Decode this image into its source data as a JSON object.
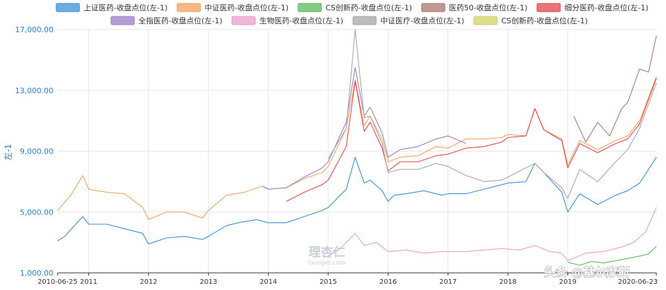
{
  "chart_data": {
    "type": "line",
    "ylabel": "左-1",
    "ylim": [
      1000,
      17000
    ],
    "y_ticks": [
      "1,000.00",
      "5,000.00",
      "9,000.00",
      "13,000.00",
      "17,000.00"
    ],
    "y_tick_values": [
      1000,
      5000,
      9000,
      13000,
      17000
    ],
    "x_ticks": [
      "2010-06-25",
      "2011",
      "2012",
      "2013",
      "2014",
      "2015",
      "2016",
      "2017",
      "2018",
      "2019",
      "2020-06-23"
    ],
    "x_tick_values": [
      2010.48,
      2011.0,
      2012.0,
      2013.0,
      2014.0,
      2015.0,
      2016.0,
      2017.0,
      2018.0,
      2019.0,
      2020.48
    ],
    "xlim": [
      2010.48,
      2020.48
    ],
    "grid": true,
    "legend_position": "top",
    "series": [
      {
        "name": "上证医药-收盘点位(左-1)",
        "color": "#3a8fd6",
        "x": [
          2010.48,
          2010.6,
          2010.9,
          2011.0,
          2011.3,
          2011.6,
          2011.9,
          2012.0,
          2012.3,
          2012.6,
          2012.9,
          2013.0,
          2013.3,
          2013.5,
          2013.8,
          2014.0,
          2014.3,
          2014.6,
          2014.9,
          2015.0,
          2015.3,
          2015.45,
          2015.6,
          2015.7,
          2015.9,
          2016.0,
          2016.1,
          2016.3,
          2016.6,
          2016.9,
          2017.0,
          2017.3,
          2017.6,
          2017.9,
          2018.0,
          2018.3,
          2018.45,
          2018.6,
          2018.9,
          2019.0,
          2019.2,
          2019.5,
          2019.8,
          2020.0,
          2020.2,
          2020.48
        ],
        "y": [
          3100,
          3400,
          4700,
          4200,
          4200,
          3900,
          3600,
          2900,
          3300,
          3400,
          3200,
          3400,
          4100,
          4300,
          4500,
          4300,
          4300,
          4700,
          5100,
          5300,
          6500,
          8600,
          6900,
          7100,
          6400,
          5700,
          6100,
          6200,
          6400,
          6100,
          6200,
          6200,
          6500,
          6800,
          6900,
          7000,
          8200,
          7600,
          6300,
          5000,
          6200,
          5500,
          6100,
          6400,
          6900,
          8600
        ]
      },
      {
        "name": "中证医药-收盘点位(左-1)",
        "color": "#f2a25f",
        "x": [
          2010.48,
          2010.7,
          2010.9,
          2011.0,
          2011.3,
          2011.6,
          2011.9,
          2012.0,
          2012.3,
          2012.6,
          2012.9,
          2013.0,
          2013.3,
          2013.6,
          2013.9,
          2014.0,
          2014.3,
          2014.6,
          2014.9,
          2015.0,
          2015.3,
          2015.45,
          2015.6,
          2015.7,
          2015.9,
          2016.0,
          2016.2,
          2016.5,
          2016.8,
          2017.0,
          2017.3,
          2017.6,
          2017.9,
          2018.0,
          2018.3,
          2018.45,
          2018.6,
          2018.9,
          2019.0,
          2019.2,
          2019.5,
          2019.8,
          2020.0,
          2020.2,
          2020.48
        ],
        "y": [
          5100,
          6100,
          7400,
          6500,
          6300,
          6200,
          5300,
          4500,
          5000,
          5000,
          4600,
          5100,
          6100,
          6300,
          6700,
          6500,
          6600,
          7200,
          7600,
          8000,
          10500,
          13700,
          10700,
          11300,
          9800,
          8300,
          8600,
          8700,
          9300,
          9200,
          9800,
          9800,
          9900,
          10100,
          10000,
          11800,
          10400,
          9800,
          8100,
          9700,
          9100,
          9700,
          10000,
          11000,
          13900
        ]
      },
      {
        "name": "CS创新药-收盘点位(左-1)",
        "color": "#5cb85c",
        "x": [
          2019.0,
          2019.2,
          2019.4,
          2019.6,
          2019.8,
          2020.0,
          2020.2,
          2020.35,
          2020.48
        ],
        "y": [
          1700,
          1500,
          1750,
          1650,
          1800,
          1950,
          2100,
          2250,
          2750
        ]
      },
      {
        "name": "医药50-收盘点位(左-1)",
        "color": "#a9776c",
        "x": [
          2019.1,
          2019.3,
          2019.5,
          2019.7,
          2019.9,
          2020.0,
          2020.2,
          2020.35,
          2020.48
        ],
        "y": [
          11300,
          9600,
          10900,
          10000,
          11800,
          12200,
          14400,
          14200,
          16600
        ]
      },
      {
        "name": "细分医药-收盘点位(左-1)",
        "color": "#e0474c",
        "x": [
          2014.3,
          2014.6,
          2014.9,
          2015.0,
          2015.3,
          2015.45,
          2015.6,
          2015.7,
          2015.9,
          2016.0,
          2016.2,
          2016.5,
          2016.8,
          2017.0,
          2017.3,
          2017.6,
          2017.9,
          2018.0,
          2018.3,
          2018.45,
          2018.6,
          2018.9,
          2019.0,
          2019.2,
          2019.5,
          2019.8,
          2020.0,
          2020.2,
          2020.48
        ],
        "y": [
          5700,
          6300,
          6800,
          7100,
          9300,
          13600,
          10300,
          10900,
          9200,
          7700,
          8300,
          8300,
          8700,
          8800,
          9200,
          9300,
          9600,
          9900,
          10000,
          11800,
          10400,
          9700,
          7900,
          9500,
          8900,
          9500,
          9800,
          10800,
          13800
        ]
      },
      {
        "name": "全指医药-收盘点位(左-1)",
        "color": "#9b7cc7",
        "x": [
          2013.9,
          2014.0,
          2014.3,
          2014.6,
          2014.9,
          2015.0,
          2015.3,
          2015.45,
          2015.6,
          2015.7,
          2015.9,
          2016.0,
          2016.2,
          2016.5,
          2016.8,
          2017.0,
          2017.3
        ],
        "y": [
          6700,
          6500,
          6600,
          7300,
          7900,
          8300,
          10900,
          14500,
          11300,
          11900,
          10200,
          8600,
          9100,
          9300,
          9800,
          10000,
          9500
        ]
      },
      {
        "name": "生物医药-收盘点位(左-1)",
        "color": "#e89ec9",
        "x": [
          2015.0,
          2015.2,
          2015.45,
          2015.6,
          2015.8,
          2016.0,
          2016.3,
          2016.6,
          2016.9,
          2017.3,
          2017.6,
          2017.9,
          2018.2,
          2018.45,
          2018.7,
          2018.9,
          2019.0,
          2019.3,
          2019.6,
          2019.9,
          2020.1,
          2020.3,
          2020.48
        ],
        "y": [
          2100,
          2600,
          3600,
          2800,
          3000,
          2400,
          2500,
          2300,
          2400,
          2400,
          2500,
          2600,
          2500,
          2800,
          2400,
          2300,
          1800,
          2300,
          2400,
          2700,
          3000,
          3700,
          5300
        ]
      },
      {
        "name": "中证医疗-收盘点位(左-1)",
        "color": "#a6a6a6",
        "x": [
          2015.0,
          2015.3,
          2015.45,
          2015.6,
          2015.7,
          2015.9,
          2016.0,
          2016.2,
          2016.5,
          2016.8,
          2017.0,
          2017.3,
          2017.6,
          2017.9,
          2018.0,
          2018.3,
          2018.45,
          2018.6,
          2018.9,
          2019.0,
          2019.2,
          2019.5,
          2019.8,
          2020.0,
          2020.2,
          2020.48
        ],
        "y": [
          8500,
          10500,
          17000,
          11200,
          11300,
          9500,
          7600,
          7800,
          7800,
          8200,
          8000,
          7400,
          7000,
          7100,
          7300,
          7900,
          8200,
          7600,
          6600,
          5900,
          7800,
          7000,
          8300,
          9100,
          10500,
          13500
        ]
      },
      {
        "name": "CS创新药-收盘点位(左-1)",
        "color": "#d2d06a",
        "x": [],
        "y": []
      }
    ]
  },
  "watermark": {
    "brand": "理杏仁",
    "site": "lixinger.com"
  },
  "credit": "头条 @基尔摩斯"
}
